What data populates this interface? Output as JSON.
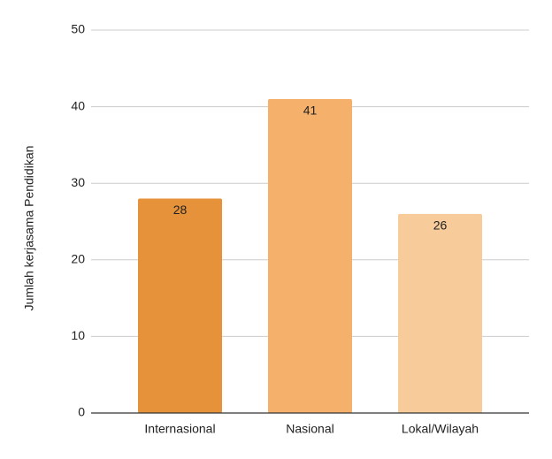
{
  "chart_data": {
    "type": "bar",
    "y_label": "Jumlah kerjasama Pendidikan",
    "categories": [
      "Internasional",
      "Nasional",
      "Lokal/Wilayah"
    ],
    "values": [
      28,
      41,
      26
    ],
    "colors": [
      "#e5923a",
      "#f5b06b",
      "#f8cb9b"
    ],
    "ylim": [
      0,
      50
    ],
    "yticks": [
      0,
      10,
      20,
      30,
      40,
      50
    ],
    "grid": true
  }
}
